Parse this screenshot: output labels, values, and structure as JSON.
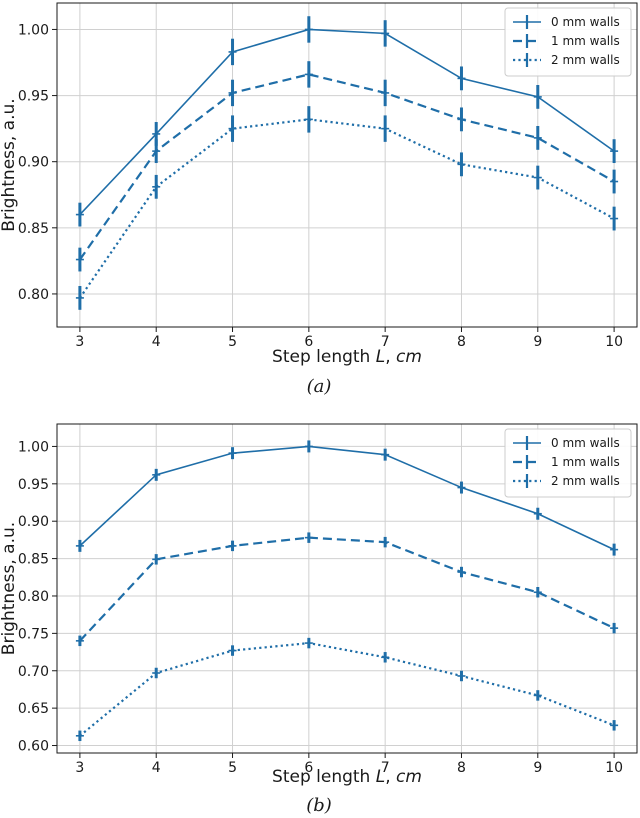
{
  "chart_data": [
    {
      "type": "line",
      "panel_label": "(a)",
      "x": [
        3,
        4,
        5,
        6,
        7,
        8,
        9,
        10
      ],
      "xlabel_parts": [
        "Step length ",
        "L",
        ", ",
        "cm"
      ],
      "ylabel": "Brightness, a.u.",
      "xlim": [
        2.7,
        10.3
      ],
      "ylim": [
        0.775,
        1.02
      ],
      "xticks": [
        "3",
        "4",
        "5",
        "6",
        "7",
        "8",
        "9",
        "10"
      ],
      "yticks": [
        "0.80",
        "0.85",
        "0.90",
        "0.95",
        "1.00"
      ],
      "grid": true,
      "legend_position": "top-right",
      "color": "#1f6ea8",
      "series": [
        {
          "name": "0 mm walls",
          "style": "solid",
          "values": [
            0.86,
            0.921,
            0.983,
            1.0,
            0.997,
            0.963,
            0.949,
            0.908
          ],
          "errors": [
            0.009,
            0.009,
            0.01,
            0.01,
            0.01,
            0.009,
            0.009,
            0.009
          ]
        },
        {
          "name": "1 mm walls",
          "style": "dashed",
          "values": [
            0.826,
            0.908,
            0.952,
            0.966,
            0.952,
            0.932,
            0.918,
            0.885
          ],
          "errors": [
            0.009,
            0.009,
            0.01,
            0.01,
            0.01,
            0.009,
            0.009,
            0.009
          ]
        },
        {
          "name": "2 mm walls",
          "style": "dotted",
          "values": [
            0.797,
            0.881,
            0.925,
            0.932,
            0.925,
            0.898,
            0.888,
            0.857
          ],
          "errors": [
            0.009,
            0.009,
            0.01,
            0.01,
            0.01,
            0.009,
            0.009,
            0.009
          ]
        }
      ]
    },
    {
      "type": "line",
      "panel_label": "(b)",
      "x": [
        3,
        4,
        5,
        6,
        7,
        8,
        9,
        10
      ],
      "xlabel_parts": [
        "Step length ",
        "L",
        ", ",
        "cm"
      ],
      "ylabel": "Brightness, a.u.",
      "xlim": [
        2.7,
        10.3
      ],
      "ylim": [
        0.59,
        1.03
      ],
      "xticks": [
        "3",
        "4",
        "5",
        "6",
        "7",
        "8",
        "9",
        "10"
      ],
      "yticks": [
        "0.60",
        "0.65",
        "0.70",
        "0.75",
        "0.80",
        "0.85",
        "0.90",
        "0.95",
        "1.00"
      ],
      "grid": true,
      "legend_position": "top-right",
      "color": "#1f6ea8",
      "series": [
        {
          "name": "0 mm walls",
          "style": "solid",
          "values": [
            0.867,
            0.962,
            0.991,
            1.0,
            0.989,
            0.945,
            0.91,
            0.862
          ],
          "errors": [
            0.008,
            0.008,
            0.008,
            0.008,
            0.008,
            0.008,
            0.008,
            0.008
          ]
        },
        {
          "name": "1 mm walls",
          "style": "dashed",
          "values": [
            0.74,
            0.849,
            0.867,
            0.878,
            0.872,
            0.832,
            0.805,
            0.757
          ],
          "errors": [
            0.007,
            0.007,
            0.007,
            0.007,
            0.007,
            0.007,
            0.007,
            0.007
          ]
        },
        {
          "name": "2 mm walls",
          "style": "dotted",
          "values": [
            0.613,
            0.697,
            0.727,
            0.737,
            0.718,
            0.693,
            0.667,
            0.627
          ],
          "errors": [
            0.007,
            0.007,
            0.007,
            0.007,
            0.007,
            0.007,
            0.007,
            0.007
          ]
        }
      ]
    }
  ]
}
